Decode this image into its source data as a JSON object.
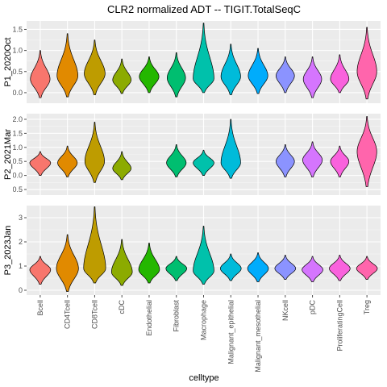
{
  "chart_data": {
    "type": "violin",
    "title": "CLR2 normalized ADT -- TIGIT.TotalSeqC",
    "xlabel": "celltype",
    "ylabel": "",
    "categories": [
      "Bcell",
      "CD4Tcell",
      "CD8Tcell",
      "cDC",
      "Endothelial",
      "Fibroblast",
      "Macrophage",
      "Malignant_epithelial",
      "Malignant_mesothelial",
      "NKcell",
      "pDC",
      "ProliferatingCell",
      "Treg"
    ],
    "colors": [
      "#F8766D",
      "#E18A00",
      "#BE9C00",
      "#8CAB00",
      "#24B700",
      "#00BE70",
      "#00C1AB",
      "#00BBDA",
      "#00ACFC",
      "#8B93FF",
      "#D575FE",
      "#F962DD",
      "#FF65AC"
    ],
    "legend": "none",
    "grid": true,
    "panels": [
      {
        "strip": "P1_2020Oct",
        "ylim": [
          -0.25,
          1.7
        ],
        "yticks": [
          0.0,
          0.5,
          1.0,
          1.5
        ],
        "ytick_labels": [
          "0.0",
          "0.5",
          "1.0",
          "1.5"
        ],
        "violins": [
          {
            "category": "Bcell",
            "center": 0.32,
            "min": -0.12,
            "max": 1.0,
            "width": 0.8
          },
          {
            "category": "CD4Tcell",
            "center": 0.4,
            "min": -0.1,
            "max": 1.4,
            "width": 0.85
          },
          {
            "category": "CD8Tcell",
            "center": 0.45,
            "min": -0.05,
            "max": 1.25,
            "width": 0.85
          },
          {
            "category": "cDC",
            "center": 0.3,
            "min": -0.02,
            "max": 0.8,
            "width": 0.75
          },
          {
            "category": "Endothelial",
            "center": 0.38,
            "min": 0.0,
            "max": 0.85,
            "width": 0.8
          },
          {
            "category": "Fibroblast",
            "center": 0.35,
            "min": -0.1,
            "max": 0.95,
            "width": 0.75
          },
          {
            "category": "Macrophage",
            "center": 0.33,
            "min": 0.0,
            "max": 1.65,
            "width": 0.85
          },
          {
            "category": "Malignant_epithelial",
            "center": 0.38,
            "min": -0.05,
            "max": 1.15,
            "width": 0.8
          },
          {
            "category": "Malignant_mesothelial",
            "center": 0.4,
            "min": -0.02,
            "max": 1.05,
            "width": 0.8
          },
          {
            "category": "NKcell",
            "center": 0.4,
            "min": 0.0,
            "max": 0.85,
            "width": 0.75
          },
          {
            "category": "pDC",
            "center": 0.32,
            "min": -0.12,
            "max": 0.85,
            "width": 0.75
          },
          {
            "category": "ProliferatingCell",
            "center": 0.32,
            "min": 0.0,
            "max": 0.9,
            "width": 0.75
          },
          {
            "category": "Treg",
            "center": 0.5,
            "min": -0.15,
            "max": 1.55,
            "width": 0.8
          }
        ]
      },
      {
        "strip": "P2_2021Mar",
        "ylim": [
          -0.7,
          2.2
        ],
        "yticks": [
          -0.5,
          0.0,
          0.5,
          1.0,
          1.5,
          2.0
        ],
        "ytick_labels": [
          "-0.5",
          "0.0",
          "0.5",
          "1.0",
          "1.5",
          "2.0"
        ],
        "violins": [
          {
            "category": "Bcell",
            "center": 0.45,
            "min": 0.0,
            "max": 0.85,
            "width": 0.85
          },
          {
            "category": "CD4Tcell",
            "center": 0.45,
            "min": -0.05,
            "max": 1.05,
            "width": 0.8
          },
          {
            "category": "CD8Tcell",
            "center": 0.5,
            "min": -0.25,
            "max": 1.9,
            "width": 0.8
          },
          {
            "category": "cDC",
            "center": 0.25,
            "min": -0.15,
            "max": 0.85,
            "width": 0.75
          },
          {
            "category": "Fibroblast",
            "center": 0.45,
            "min": -0.05,
            "max": 1.1,
            "width": 0.8
          },
          {
            "category": "Macrophage",
            "center": 0.45,
            "min": 0.0,
            "max": 0.9,
            "width": 0.85
          },
          {
            "category": "Malignant_epithelial",
            "center": 0.45,
            "min": -0.1,
            "max": 2.0,
            "width": 0.8
          },
          {
            "category": "NKcell",
            "center": 0.5,
            "min": -0.05,
            "max": 1.1,
            "width": 0.75
          },
          {
            "category": "pDC",
            "center": 0.55,
            "min": -0.05,
            "max": 1.2,
            "width": 0.8
          },
          {
            "category": "ProliferatingCell",
            "center": 0.5,
            "min": -0.05,
            "max": 1.05,
            "width": 0.75
          },
          {
            "category": "Treg",
            "center": 0.85,
            "min": -0.4,
            "max": 2.1,
            "width": 0.8
          }
        ]
      },
      {
        "strip": "P3_2023Jan",
        "ylim": [
          -0.2,
          3.5
        ],
        "yticks": [
          0,
          1,
          2,
          3
        ],
        "ytick_labels": [
          "0",
          "1",
          "2",
          "3"
        ],
        "violins": [
          {
            "category": "Bcell",
            "center": 0.85,
            "min": 0.25,
            "max": 1.4,
            "width": 0.85
          },
          {
            "category": "CD4Tcell",
            "center": 0.9,
            "min": -0.05,
            "max": 2.3,
            "width": 0.9
          },
          {
            "category": "CD8Tcell",
            "center": 0.9,
            "min": 0.3,
            "max": 3.45,
            "width": 0.9
          },
          {
            "category": "cDC",
            "center": 0.75,
            "min": 0.2,
            "max": 2.1,
            "width": 0.85
          },
          {
            "category": "Endothelial",
            "center": 0.85,
            "min": 0.3,
            "max": 1.95,
            "width": 0.85
          },
          {
            "category": "Fibroblast",
            "center": 0.9,
            "min": 0.4,
            "max": 1.4,
            "width": 0.85
          },
          {
            "category": "Macrophage",
            "center": 0.8,
            "min": 0.25,
            "max": 2.65,
            "width": 0.85
          },
          {
            "category": "Malignant_epithelial",
            "center": 0.9,
            "min": 0.4,
            "max": 1.5,
            "width": 0.85
          },
          {
            "category": "Malignant_mesothelial",
            "center": 0.9,
            "min": 0.35,
            "max": 1.55,
            "width": 0.85
          },
          {
            "category": "NKcell",
            "center": 0.9,
            "min": 0.45,
            "max": 1.45,
            "width": 0.85
          },
          {
            "category": "pDC",
            "center": 0.85,
            "min": 0.35,
            "max": 1.4,
            "width": 0.85
          },
          {
            "category": "ProliferatingCell",
            "center": 0.9,
            "min": 0.4,
            "max": 1.45,
            "width": 0.85
          },
          {
            "category": "Treg",
            "center": 0.9,
            "min": 0.45,
            "max": 1.4,
            "width": 0.85
          }
        ]
      }
    ]
  }
}
